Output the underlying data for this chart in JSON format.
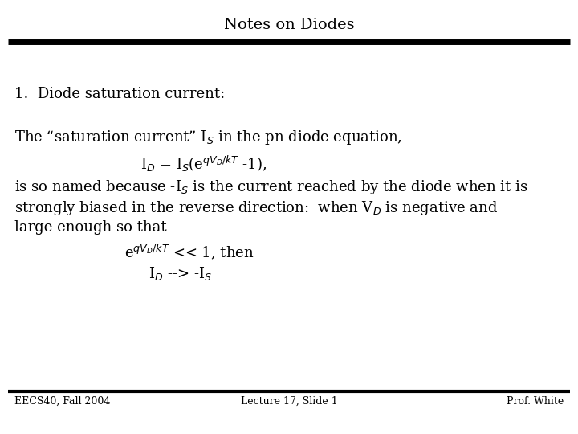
{
  "title": "Notes on Diodes",
  "background_color": "#ffffff",
  "text_color": "#000000",
  "title_fontsize": 14,
  "body_fontsize": 13,
  "footer_fontsize": 9,
  "heading": "1.  Diode saturation current:",
  "line1": "The “saturation current” I$_S$ in the pn-diode equation,",
  "line2": "I$_D$ = I$_S$(e$^{qV_D/kT}$ -1),",
  "line3": "is so named because -I$_S$ is the current reached by the diode when it is",
  "line4": "strongly biased in the reverse direction:  when V$_D$ is negative and",
  "line5": "large enough so that",
  "line6": "e$^{qV_D/kT}$ << 1, then",
  "line7": "I$_D$ --> -I$_S$",
  "footer_left": "EECS40, Fall 2004",
  "footer_center": "Lecture 17, Slide 1",
  "footer_right": "Prof. White"
}
